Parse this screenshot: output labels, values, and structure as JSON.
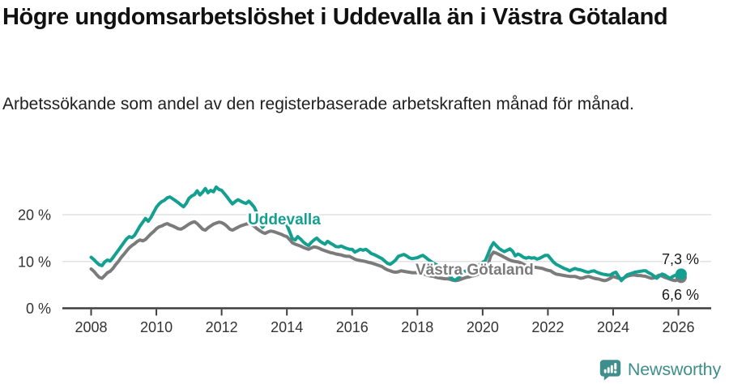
{
  "header": {
    "title": "Högre ungdomsarbetslöshet i Uddevalla än i Västra Götaland",
    "subtitle": "Arbetssökande som andel av den registerbaserade arbetskraften månad för månad."
  },
  "chart_data": {
    "type": "line",
    "title": "Högre ungdomsarbetslöshet i Uddevalla än i Västra Götaland",
    "subtitle": "Arbetssökande som andel av den registerbaserade arbetskraften månad för månad.",
    "x_start": "2008-01",
    "x_end": "2026-02",
    "points_per_year": 12,
    "x_ticks": [
      2008,
      2010,
      2012,
      2014,
      2016,
      2018,
      2020,
      2022,
      2024,
      2026
    ],
    "y_ticks": [
      {
        "value": 0,
        "label": "0 %"
      },
      {
        "value": 10,
        "label": "10 %"
      },
      {
        "value": 20,
        "label": "20 %"
      }
    ],
    "ylim": [
      0,
      27
    ],
    "grid": "horizontal",
    "legend_position": "inline-labels",
    "series": [
      {
        "name": "Uddevalla",
        "color": "#14A090",
        "end_label": "7,3 %",
        "values": [
          10.9,
          10.4,
          9.8,
          9.3,
          9.1,
          9.9,
          10.3,
          10.1,
          10.8,
          11.6,
          12.4,
          13.2,
          14.0,
          14.8,
          15.3,
          15.1,
          15.6,
          16.6,
          17.6,
          18.4,
          19.2,
          18.6,
          19.4,
          20.5,
          21.6,
          22.3,
          22.8,
          23.1,
          23.6,
          23.8,
          23.4,
          23.0,
          22.6,
          22.1,
          21.7,
          22.4,
          23.5,
          24.0,
          24.3,
          25.1,
          24.2,
          24.8,
          25.6,
          24.7,
          25.2,
          24.9,
          25.9,
          25.4,
          25.2,
          24.5,
          23.8,
          23.0,
          22.3,
          22.8,
          23.2,
          22.9,
          22.6,
          22.4,
          22.9,
          22.3,
          21.6,
          20.3,
          18.4,
          17.3,
          17.9,
          18.9,
          19.6,
          19.2,
          19.4,
          18.8,
          18.4,
          18.1,
          17.8,
          16.4,
          14.9,
          14.6,
          15.3,
          14.8,
          14.2,
          13.7,
          13.4,
          14.1,
          14.6,
          15.0,
          14.4,
          14.0,
          13.7,
          14.3,
          13.9,
          13.6,
          13.2,
          13.1,
          13.3,
          13.0,
          12.8,
          12.6,
          12.6,
          12.0,
          12.3,
          12.6,
          12.4,
          12.6,
          12.2,
          11.7,
          11.5,
          11.2,
          10.9,
          10.6,
          10.1,
          9.6,
          9.4,
          9.8,
          10.3,
          11.1,
          11.3,
          11.5,
          11.2,
          10.8,
          10.6,
          10.7,
          10.8,
          11.1,
          11.3,
          10.9,
          10.4,
          10.0,
          9.6,
          9.3,
          8.9,
          8.6,
          8.0,
          7.5,
          6.8,
          6.2,
          6.0,
          6.5,
          7.0,
          7.8,
          8.0,
          8.2,
          8.5,
          8.7,
          8.9,
          9.4,
          9.8,
          10.2,
          11.6,
          13.0,
          14.0,
          13.4,
          12.8,
          12.4,
          12.1,
          12.4,
          12.7,
          12.2,
          11.2,
          11.6,
          11.3,
          10.9,
          10.7,
          10.9,
          10.7,
          10.8,
          10.5,
          10.7,
          11.0,
          11.3,
          11.3,
          10.6,
          9.9,
          9.4,
          9.1,
          8.8,
          8.5,
          8.3,
          8.0,
          8.3,
          8.5,
          8.3,
          8.2,
          8.0,
          7.8,
          7.7,
          7.9,
          8.0,
          7.7,
          7.5,
          7.3,
          7.2,
          7.1,
          7.1,
          7.5,
          7.7,
          6.8,
          5.9,
          6.5,
          7.1,
          7.3,
          7.5,
          7.7,
          7.8,
          7.9,
          8.0,
          8.0,
          7.6,
          7.3,
          6.9,
          6.4,
          6.9,
          7.3,
          7.1,
          6.7,
          6.4,
          6.8,
          7.1,
          7.2,
          7.3
        ]
      },
      {
        "name": "Västra Götaland",
        "color": "#7B7B7B",
        "end_label": "6,6 %",
        "values": [
          8.4,
          7.9,
          7.2,
          6.6,
          6.4,
          7.0,
          7.6,
          7.9,
          8.5,
          9.3,
          10.0,
          10.8,
          11.5,
          12.2,
          12.9,
          13.4,
          13.8,
          14.3,
          14.6,
          14.4,
          14.7,
          15.3,
          15.9,
          16.4,
          17.0,
          17.4,
          17.6,
          17.9,
          18.1,
          17.8,
          17.6,
          17.3,
          17.0,
          16.9,
          17.2,
          17.6,
          18.0,
          18.3,
          18.5,
          18.1,
          17.5,
          16.9,
          16.7,
          17.2,
          17.6,
          18.0,
          18.2,
          18.4,
          18.3,
          18.0,
          17.5,
          16.9,
          16.7,
          17.0,
          17.3,
          17.6,
          17.8,
          18.0,
          18.1,
          17.9,
          17.5,
          17.0,
          16.6,
          16.2,
          16.0,
          16.3,
          16.5,
          16.4,
          16.2,
          16.0,
          15.8,
          15.5,
          15.3,
          14.7,
          14.0,
          13.7,
          13.5,
          13.3,
          13.0,
          12.8,
          12.6,
          12.9,
          13.1,
          13.0,
          12.8,
          12.5,
          12.3,
          12.1,
          11.9,
          11.8,
          11.6,
          11.5,
          11.4,
          11.2,
          11.1,
          11.1,
          10.8,
          10.5,
          10.3,
          10.2,
          10.1,
          10.0,
          9.8,
          9.7,
          9.5,
          9.3,
          9.1,
          8.9,
          8.5,
          8.2,
          8.0,
          7.8,
          7.7,
          7.8,
          8.0,
          7.9,
          7.8,
          7.7,
          7.6,
          7.6,
          7.6,
          7.5,
          7.4,
          7.2,
          7.0,
          6.9,
          6.8,
          6.6,
          6.5,
          6.4,
          6.3,
          6.3,
          6.2,
          6.0,
          5.9,
          6.0,
          6.2,
          6.4,
          6.6,
          6.7,
          6.9,
          7.0,
          7.2,
          7.5,
          7.8,
          8.0,
          9.4,
          11.2,
          12.0,
          11.8,
          11.5,
          11.2,
          10.9,
          10.6,
          10.3,
          10.1,
          10.0,
          9.9,
          9.7,
          9.4,
          9.1,
          9.0,
          8.9,
          8.8,
          8.7,
          8.6,
          8.5,
          8.3,
          8.1,
          8.0,
          7.6,
          7.3,
          7.2,
          7.1,
          7.0,
          6.9,
          6.8,
          6.8,
          6.8,
          6.6,
          6.4,
          6.5,
          6.7,
          6.8,
          6.6,
          6.4,
          6.3,
          6.2,
          6.0,
          5.9,
          6.1,
          6.4,
          6.8,
          6.6,
          6.4,
          6.3,
          6.5,
          6.8,
          7.0,
          7.1,
          7.1,
          7.0,
          7.0,
          6.9,
          6.8,
          6.6,
          6.4,
          6.5,
          6.8,
          7.1,
          6.9,
          6.6,
          6.4,
          6.2,
          6.0,
          5.9,
          6.2,
          6.6
        ]
      }
    ],
    "colors": {
      "grid": "#E2E2E2",
      "axis": "#3F3F3F",
      "tick_label": "#333333",
      "end_label": "#1A1A1A"
    }
  },
  "footer": {
    "brand": "Newsworthy"
  }
}
